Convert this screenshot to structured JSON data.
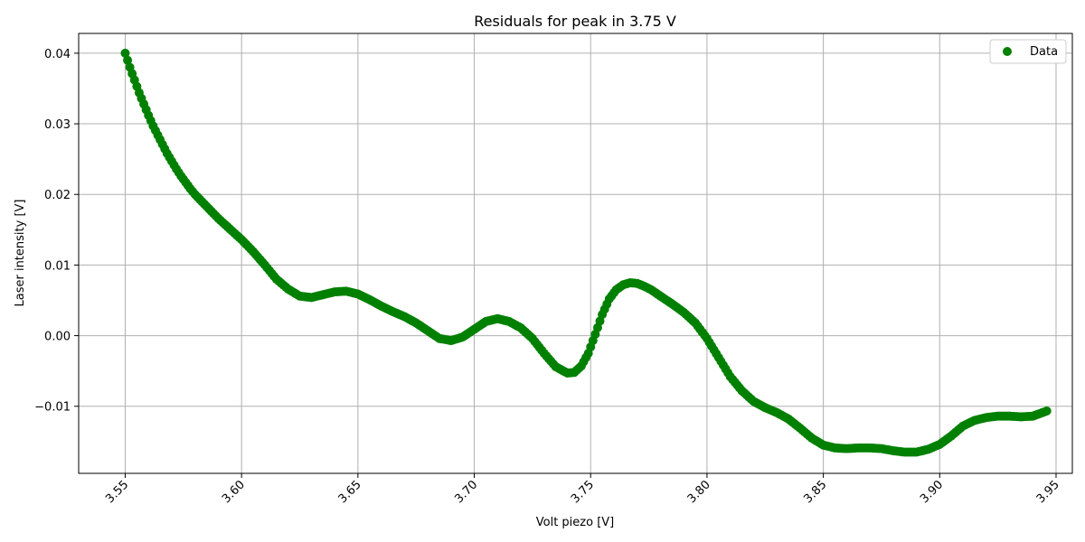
{
  "chart_data": {
    "type": "scatter",
    "title": "Residuals for peak in 3.75 V",
    "xlabel": "Volt piezo [V]",
    "ylabel": "Laser intensity [V]",
    "xlim": [
      3.53,
      3.957
    ],
    "ylim": [
      -0.0195,
      0.0428
    ],
    "x_ticks": [
      3.55,
      3.6,
      3.65,
      3.7,
      3.75,
      3.8,
      3.85,
      3.9,
      3.95
    ],
    "x_tick_labels": [
      "3.55",
      "3.60",
      "3.65",
      "3.70",
      "3.75",
      "3.80",
      "3.85",
      "3.90",
      "3.95"
    ],
    "y_ticks": [
      -0.01,
      0.0,
      0.01,
      0.02,
      0.03,
      0.04
    ],
    "y_tick_labels": [
      "−0.01",
      "0.00",
      "0.01",
      "0.02",
      "0.03",
      "0.04"
    ],
    "grid": true,
    "legend_position": "top-right",
    "series": [
      {
        "name": "Data",
        "color": "#008000",
        "marker": "circle",
        "curve_anchors": [
          [
            3.55,
            0.04
          ],
          [
            3.552,
            0.038
          ],
          [
            3.554,
            0.0362
          ],
          [
            3.556,
            0.0344
          ],
          [
            3.558,
            0.0328
          ],
          [
            3.56,
            0.0312
          ],
          [
            3.562,
            0.0297
          ],
          [
            3.564,
            0.0284
          ],
          [
            3.566,
            0.0271
          ],
          [
            3.568,
            0.0258
          ],
          [
            3.57,
            0.0247
          ],
          [
            3.572,
            0.0236
          ],
          [
            3.574,
            0.0226
          ],
          [
            3.576,
            0.0217
          ],
          [
            3.578,
            0.0208
          ],
          [
            3.58,
            0.02
          ],
          [
            3.585,
            0.0183
          ],
          [
            3.59,
            0.0166
          ],
          [
            3.595,
            0.0151
          ],
          [
            3.6,
            0.0136
          ],
          [
            3.605,
            0.0119
          ],
          [
            3.61,
            0.01
          ],
          [
            3.615,
            0.008
          ],
          [
            3.62,
            0.0066
          ],
          [
            3.625,
            0.0056
          ],
          [
            3.63,
            0.0054
          ],
          [
            3.635,
            0.0058
          ],
          [
            3.64,
            0.0062
          ],
          [
            3.645,
            0.0063
          ],
          [
            3.65,
            0.0059
          ],
          [
            3.655,
            0.0051
          ],
          [
            3.66,
            0.0042
          ],
          [
            3.665,
            0.0034
          ],
          [
            3.67,
            0.0027
          ],
          [
            3.675,
            0.0018
          ],
          [
            3.68,
            0.0007
          ],
          [
            3.685,
            -0.0004
          ],
          [
            3.69,
            -0.0007
          ],
          [
            3.695,
            -0.0002
          ],
          [
            3.7,
            0.0009
          ],
          [
            3.705,
            0.002
          ],
          [
            3.71,
            0.0024
          ],
          [
            3.715,
            0.002
          ],
          [
            3.72,
            0.0011
          ],
          [
            3.725,
            -0.0004
          ],
          [
            3.73,
            -0.0025
          ],
          [
            3.735,
            -0.0044
          ],
          [
            3.74,
            -0.0053
          ],
          [
            3.743,
            -0.0052
          ],
          [
            3.746,
            -0.0043
          ],
          [
            3.749,
            -0.0025
          ],
          [
            3.752,
            0.0002
          ],
          [
            3.755,
            0.003
          ],
          [
            3.758,
            0.0052
          ],
          [
            3.761,
            0.0065
          ],
          [
            3.764,
            0.0072
          ],
          [
            3.767,
            0.0075
          ],
          [
            3.77,
            0.0074
          ],
          [
            3.773,
            0.007
          ],
          [
            3.776,
            0.0065
          ],
          [
            3.78,
            0.0056
          ],
          [
            3.785,
            0.0045
          ],
          [
            3.79,
            0.0033
          ],
          [
            3.795,
            0.0018
          ],
          [
            3.8,
            -0.0004
          ],
          [
            3.805,
            -0.0031
          ],
          [
            3.81,
            -0.0058
          ],
          [
            3.815,
            -0.0078
          ],
          [
            3.82,
            -0.0093
          ],
          [
            3.825,
            -0.0102
          ],
          [
            3.83,
            -0.0109
          ],
          [
            3.835,
            -0.0118
          ],
          [
            3.84,
            -0.0131
          ],
          [
            3.845,
            -0.0145
          ],
          [
            3.85,
            -0.0155
          ],
          [
            3.855,
            -0.0159
          ],
          [
            3.86,
            -0.016
          ],
          [
            3.865,
            -0.0159
          ],
          [
            3.87,
            -0.0159
          ],
          [
            3.875,
            -0.016
          ],
          [
            3.88,
            -0.0163
          ],
          [
            3.885,
            -0.0165
          ],
          [
            3.89,
            -0.0165
          ],
          [
            3.895,
            -0.0161
          ],
          [
            3.9,
            -0.0154
          ],
          [
            3.905,
            -0.0142
          ],
          [
            3.91,
            -0.0128
          ],
          [
            3.915,
            -0.012
          ],
          [
            3.92,
            -0.0116
          ],
          [
            3.925,
            -0.0114
          ],
          [
            3.93,
            -0.0114
          ],
          [
            3.935,
            -0.0115
          ],
          [
            3.94,
            -0.0114
          ],
          [
            3.945,
            -0.0108
          ],
          [
            3.9465,
            -0.0106
          ]
        ]
      }
    ]
  }
}
